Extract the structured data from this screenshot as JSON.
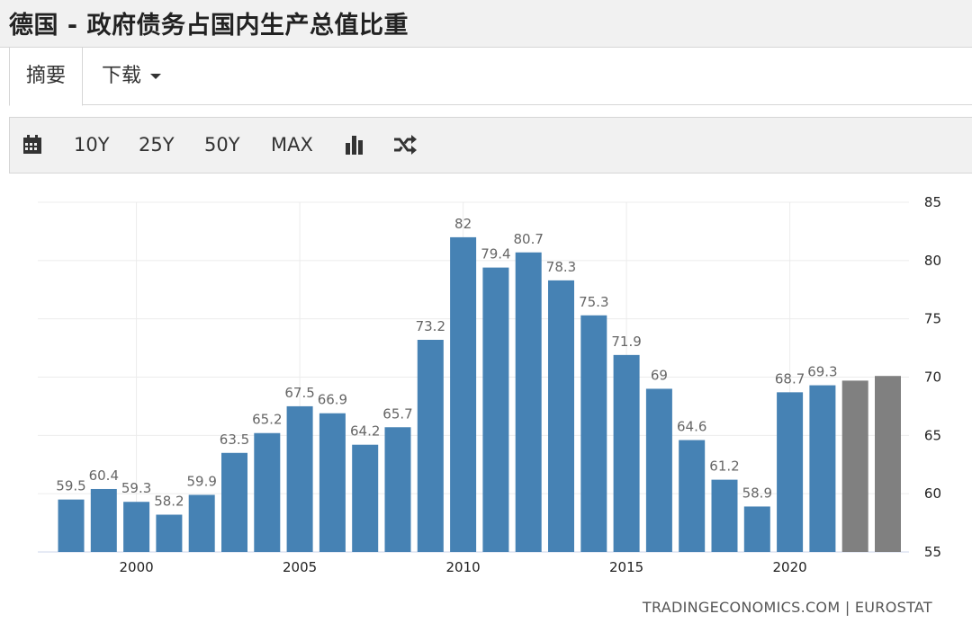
{
  "title": "德国 - 政府债务占国内生产总值比重",
  "tabs": {
    "summary": "摘要",
    "download": "下载"
  },
  "toolbar": {
    "calendar_icon": "calendar-icon",
    "range_10y": "10Y",
    "range_25y": "25Y",
    "range_50y": "50Y",
    "range_max": "MAX",
    "bar_chart_icon": "bar-chart-icon",
    "shuffle_icon": "shuffle-icon"
  },
  "source": "TRADINGECONOMICS.COM | EUROSTAT",
  "colors": {
    "actual": "#4682b4",
    "forecast": "#808080"
  },
  "chart_data": {
    "type": "bar",
    "title": "",
    "xlabel": "",
    "ylabel": "",
    "ylim": [
      55,
      85
    ],
    "yticks": [
      55,
      60,
      65,
      70,
      75,
      80,
      85
    ],
    "y_axis_side": "right",
    "grid": true,
    "xtick_labels": [
      "2000",
      "2005",
      "2010",
      "2015",
      "2020"
    ],
    "x": [
      1998,
      1999,
      2000,
      2001,
      2002,
      2003,
      2004,
      2005,
      2006,
      2007,
      2008,
      2009,
      2010,
      2011,
      2012,
      2013,
      2014,
      2015,
      2016,
      2017,
      2018,
      2019,
      2020,
      2021,
      2022,
      2023
    ],
    "values": [
      59.5,
      60.4,
      59.3,
      58.2,
      59.9,
      63.5,
      65.2,
      67.5,
      66.9,
      64.2,
      65.7,
      73.2,
      82,
      79.4,
      80.7,
      78.3,
      75.3,
      71.9,
      69,
      64.6,
      61.2,
      58.9,
      68.7,
      69.3,
      69.7,
      70.1
    ],
    "data_labels": [
      "59.5",
      "60.4",
      "59.3",
      "58.2",
      "59.9",
      "63.5",
      "65.2",
      "67.5",
      "66.9",
      "64.2",
      "65.7",
      "73.2",
      "82",
      "79.4",
      "80.7",
      "78.3",
      "75.3",
      "71.9",
      "69",
      "64.6",
      "61.2",
      "58.9",
      "68.7",
      "69.3",
      "",
      ""
    ],
    "forecast": [
      false,
      false,
      false,
      false,
      false,
      false,
      false,
      false,
      false,
      false,
      false,
      false,
      false,
      false,
      false,
      false,
      false,
      false,
      false,
      false,
      false,
      false,
      false,
      false,
      true,
      true
    ]
  }
}
